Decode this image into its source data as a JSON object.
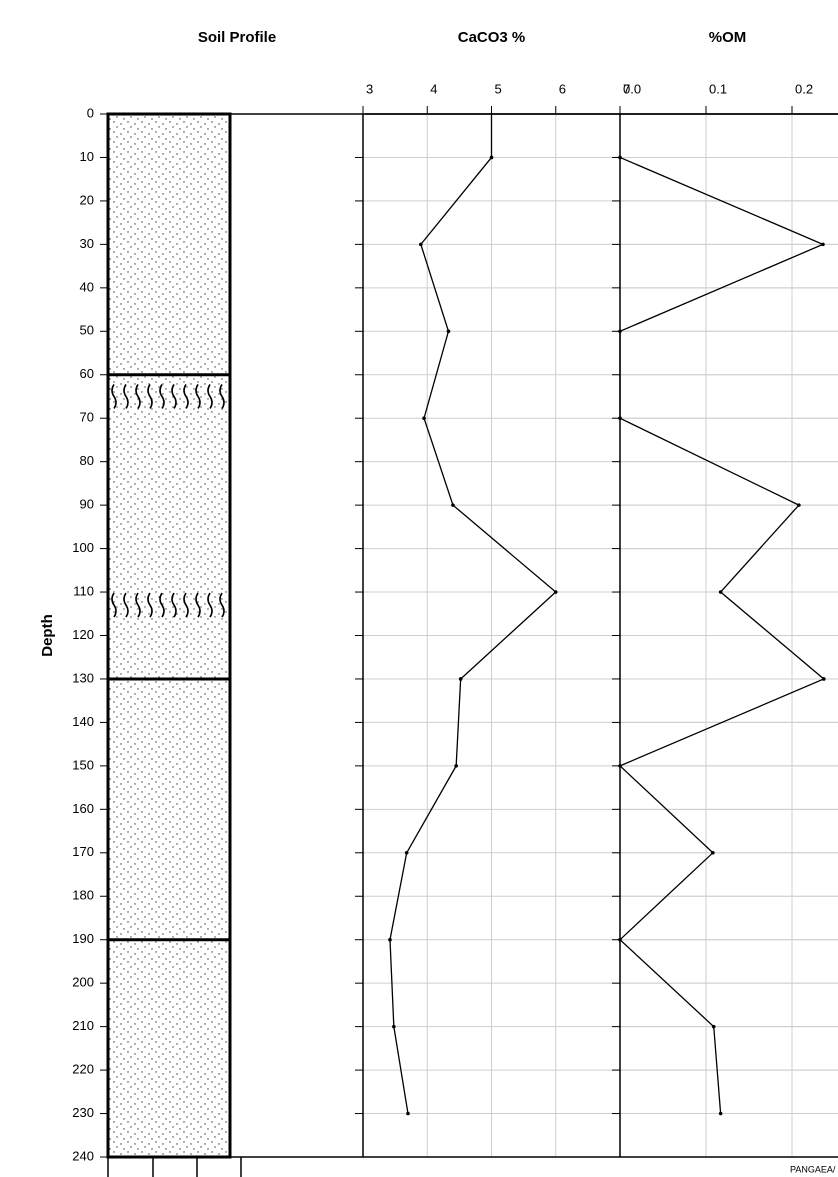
{
  "chart_data": [
    {
      "type": "profile",
      "title": "Soil Profile",
      "ylabel": "Depth",
      "ylim": [
        0,
        240
      ],
      "yticks": [
        0,
        10,
        20,
        30,
        40,
        50,
        60,
        70,
        80,
        90,
        100,
        110,
        120,
        130,
        140,
        150,
        160,
        170,
        180,
        190,
        200,
        210,
        220,
        230,
        240
      ],
      "boundaries": [
        60,
        130,
        190
      ],
      "markers": [
        65,
        113
      ]
    },
    {
      "type": "line",
      "title": "CaCO3 %",
      "xlim": [
        3,
        7
      ],
      "xticks": [
        3,
        4,
        5,
        6,
        7
      ],
      "ylim": [
        0,
        240
      ],
      "grid": true,
      "color": "#000000",
      "depth": [
        0,
        10,
        30,
        50,
        70,
        90,
        110,
        130,
        150,
        170,
        190,
        210,
        230
      ],
      "values": [
        5,
        5,
        3.9,
        4.33,
        3.95,
        4.4,
        6.0,
        4.52,
        4.45,
        3.68,
        3.42,
        3.48,
        3.7
      ]
    },
    {
      "type": "line",
      "title": "%OM",
      "xlim": [
        0,
        0.25
      ],
      "xticks": [
        {
          "value": 0,
          "label": "0.0"
        },
        0.1,
        0.2
      ],
      "ylim": [
        0,
        240
      ],
      "grid": true,
      "color": "#000000",
      "depth": [
        10,
        30,
        50,
        70,
        90,
        110,
        130,
        150,
        170,
        190,
        210,
        230
      ],
      "values": [
        0,
        0.236,
        0,
        0,
        0.208,
        0.117,
        0.237,
        0,
        0.108,
        0,
        0.109,
        0.117
      ]
    }
  ],
  "source": "PANGAEA/"
}
